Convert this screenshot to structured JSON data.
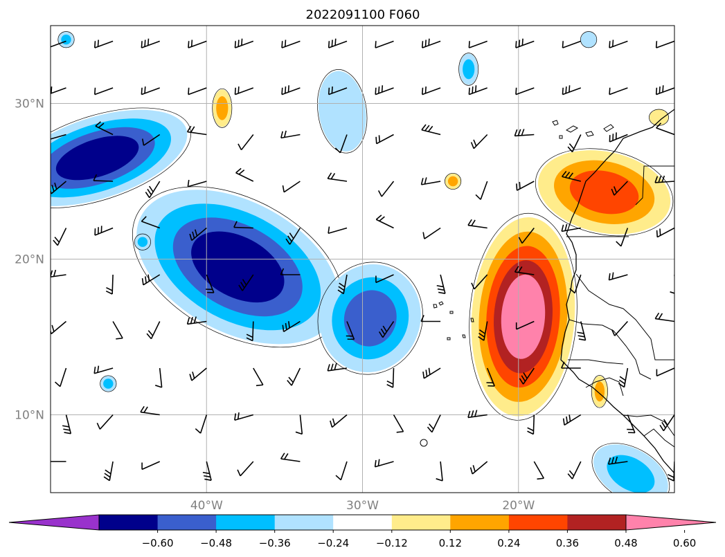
{
  "title": "2022091100 F060",
  "map": {
    "extent": {
      "lon": [
        -50,
        -10
      ],
      "lat": [
        5,
        35
      ]
    },
    "gridlines": true,
    "lat_ticks": [
      {
        "value": 30,
        "label": "30°N"
      },
      {
        "value": 20,
        "label": "20°N"
      },
      {
        "value": 10,
        "label": "10°N"
      }
    ],
    "lon_ticks": [
      {
        "value": -40,
        "label": "40°W"
      },
      {
        "value": -30,
        "label": "30°W"
      },
      {
        "value": -20,
        "label": "20°W"
      }
    ],
    "contour_levels": [
      -0.72,
      -0.6,
      -0.48,
      -0.36,
      -0.24,
      -0.12,
      0.12,
      0.24,
      0.36,
      0.48,
      0.6,
      0.72
    ],
    "colorbar": {
      "colors": [
        "#9932cc",
        "#00008b",
        "#3a5fcd",
        "#00bfff",
        "#b0e2ff",
        "#ffffff",
        "#ffec8b",
        "#ffa500",
        "#ff4500",
        "#b22222",
        "#ff82ab"
      ],
      "tick_labels": [
        "−0.60",
        "−0.48",
        "−0.36",
        "−0.24",
        "−0.12",
        "0.12",
        "0.24",
        "0.36",
        "0.48",
        "0.60"
      ],
      "extend": "both"
    },
    "features": [
      {
        "id": "neg-west-edge",
        "sign": "neg",
        "lon": -47,
        "lat": 26.5,
        "rx": 6,
        "ry": 2.6,
        "rot": -18,
        "depth": 4
      },
      {
        "id": "neg-central-blob",
        "sign": "neg",
        "lon": -38,
        "lat": 19.5,
        "rx": 7,
        "ry": 4.2,
        "rot": 28,
        "depth": 4
      },
      {
        "id": "neg-mid-blob",
        "sign": "neg",
        "lon": -29.5,
        "lat": 16.2,
        "rx": 3.2,
        "ry": 3.5,
        "rot": 20,
        "depth": 3
      },
      {
        "id": "neg-north-small",
        "sign": "neg",
        "lon": -31.3,
        "lat": 29.5,
        "rx": 1.5,
        "ry": 2.6,
        "rot": -8,
        "depth": 1
      },
      {
        "id": "neg-top-small",
        "sign": "neg",
        "lon": -23.2,
        "lat": 32.2,
        "rx": 0.6,
        "ry": 1,
        "rot": 0,
        "depth": 2
      },
      {
        "id": "neg-southeast",
        "sign": "neg",
        "lon": -12.8,
        "lat": 6.2,
        "rx": 2.6,
        "ry": 1.6,
        "rot": 30,
        "depth": 2
      },
      {
        "id": "neg-dot-1",
        "sign": "neg",
        "lon": -49,
        "lat": 34.1,
        "rx": 0.5,
        "ry": 0.5,
        "rot": 0,
        "depth": 2
      },
      {
        "id": "neg-dot-2",
        "sign": "neg",
        "lon": -44.1,
        "lat": 21.1,
        "rx": 0.5,
        "ry": 0.5,
        "rot": 0,
        "depth": 2
      },
      {
        "id": "neg-dot-3",
        "sign": "neg",
        "lon": -46.3,
        "lat": 12,
        "rx": 0.5,
        "ry": 0.5,
        "rot": 0,
        "depth": 2
      },
      {
        "id": "neg-dot-4",
        "sign": "neg",
        "lon": -15.5,
        "lat": 34.1,
        "rx": 0.5,
        "ry": 0.5,
        "rot": 0,
        "depth": 1
      },
      {
        "id": "pos-main-blob",
        "sign": "pos",
        "lon": -19.7,
        "lat": 16.3,
        "rx": 3.3,
        "ry": 6.4,
        "rot": 4,
        "depth": 5
      },
      {
        "id": "pos-northeast-blob",
        "sign": "pos",
        "lon": -14.5,
        "lat": 24.3,
        "rx": 4.3,
        "ry": 2.6,
        "rot": 12,
        "depth": 3
      },
      {
        "id": "pos-north-small",
        "sign": "pos",
        "lon": -39,
        "lat": 29.7,
        "rx": 0.6,
        "ry": 1.2,
        "rot": 0,
        "depth": 2
      },
      {
        "id": "pos-dot-1",
        "sign": "pos",
        "lon": -24.2,
        "lat": 25,
        "rx": 0.5,
        "ry": 0.5,
        "rot": 0,
        "depth": 2
      },
      {
        "id": "pos-dot-2",
        "sign": "pos",
        "lon": -14.8,
        "lat": 11.5,
        "rx": 0.5,
        "ry": 1,
        "rot": 0,
        "depth": 2
      },
      {
        "id": "pos-dot-3",
        "sign": "pos",
        "lon": -11,
        "lat": 29.1,
        "rx": 0.6,
        "ry": 0.5,
        "rot": 0,
        "depth": 1
      }
    ],
    "wind_barbs": {
      "lon_start": -49,
      "lon_step": 3,
      "lon_count": 14,
      "lat_start": 34,
      "lat_step": 3,
      "lat_count": 10
    }
  }
}
